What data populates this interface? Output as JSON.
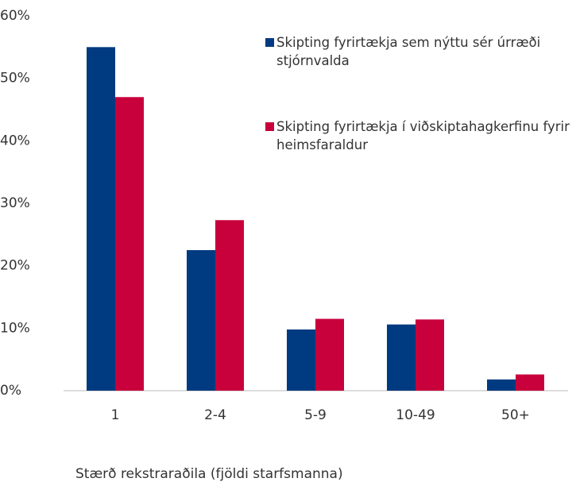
{
  "chart_data": {
    "type": "bar",
    "x_label": "Stærð rekstraraðila (fjöldi starfsmanna)",
    "categories": [
      "1",
      "2-4",
      "5-9",
      "10-49",
      "50+"
    ],
    "series": [
      {
        "name": "Skipting fyrirtækja sem nýttu sér úrræði stjórnvalda",
        "color": "#003a80",
        "values": [
          55,
          22.5,
          9.8,
          10.6,
          1.8
        ]
      },
      {
        "name": "Skipting fyrirtækja í viðskiptahagkerfinu fyrir heimsfaraldur",
        "color": "#c8003c",
        "values": [
          47,
          27.3,
          11.5,
          11.4,
          2.6
        ]
      }
    ],
    "ylim": [
      0,
      60
    ],
    "yticks": [
      {
        "value": 0,
        "label": "0%"
      },
      {
        "value": 10,
        "label": "10%"
      },
      {
        "value": 20,
        "label": "20%"
      },
      {
        "value": 30,
        "label": "30%"
      },
      {
        "value": 40,
        "label": "40%"
      },
      {
        "value": 50,
        "label": "50%"
      },
      {
        "value": 60,
        "label": "60%"
      }
    ],
    "grid": false
  }
}
